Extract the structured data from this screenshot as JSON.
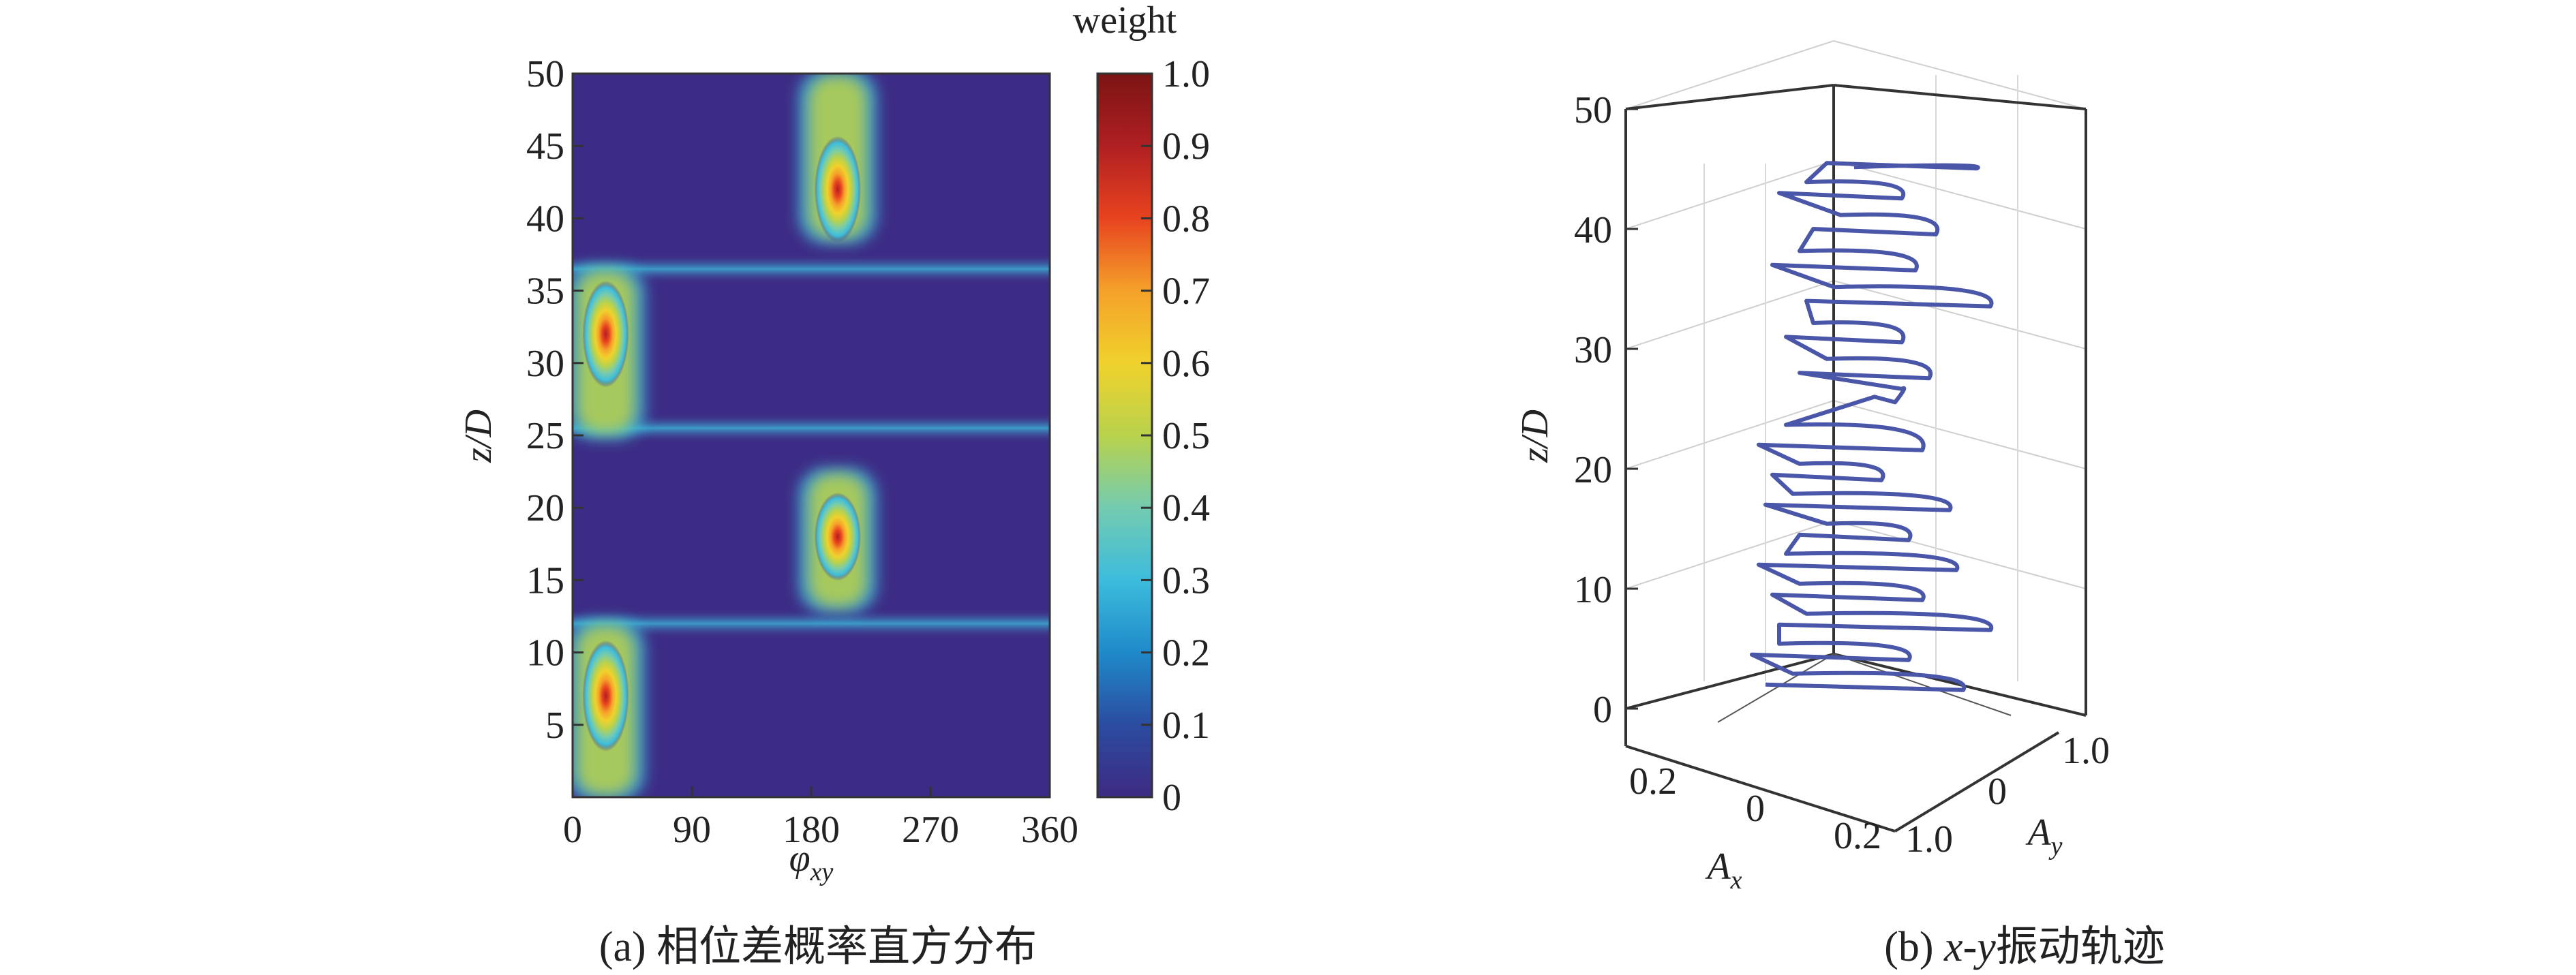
{
  "figure": {
    "caption_a": "(a) 相位差概率直方分布",
    "caption_b_prefix": "(b) ",
    "caption_b_xy": "x-y",
    "caption_b_suffix": "振动轨迹"
  },
  "chart_data": [
    {
      "type": "heatmap",
      "title": "",
      "xlabel_main": "φ",
      "xlabel_sub": "xy",
      "ylabel": "z/D",
      "xlim": [
        0,
        360
      ],
      "ylim": [
        0,
        50
      ],
      "x_ticks": [
        "0",
        "90",
        "180",
        "270",
        "360"
      ],
      "x_tick_values": [
        0,
        90,
        180,
        270,
        360
      ],
      "y_ticks": [
        "5",
        "10",
        "15",
        "20",
        "25",
        "30",
        "35",
        "40",
        "45",
        "50"
      ],
      "y_tick_values": [
        5,
        10,
        15,
        20,
        25,
        30,
        35,
        40,
        45,
        50
      ],
      "colorbar": {
        "label": "weight",
        "range": [
          0,
          1
        ],
        "ticks": [
          "0",
          "0.1",
          "0.2",
          "0.3",
          "0.4",
          "0.5",
          "0.6",
          "0.7",
          "0.8",
          "0.9",
          "1.0"
        ],
        "tick_values": [
          0,
          0.1,
          0.2,
          0.3,
          0.4,
          0.5,
          0.6,
          0.7,
          0.8,
          0.9,
          1.0
        ],
        "colormap": [
          "#3e2a82",
          "#2b4ca0",
          "#1f8ac9",
          "#3cbcdc",
          "#74cbb0",
          "#b9d24c",
          "#f0d22c",
          "#f5a12a",
          "#e8431f",
          "#b01f22",
          "#7b1414"
        ]
      },
      "background_color": "#3d2c85",
      "peaks": [
        {
          "phase": 200,
          "z_center": 42,
          "z_range": [
            38.5,
            50
          ],
          "peak_weight": 0.95
        },
        {
          "phase": 25,
          "z_center": 32,
          "z_range": [
            25,
            36.5
          ],
          "peak_weight": 0.9
        },
        {
          "phase": 200,
          "z_center": 18,
          "z_range": [
            13,
            22.5
          ],
          "peak_weight": 0.92
        },
        {
          "phase": 25,
          "z_center": 7,
          "z_range": [
            0,
            12
          ],
          "peak_weight": 0.88
        }
      ],
      "bridges_z": [
        12,
        25.5,
        36.5
      ]
    },
    {
      "type": "line",
      "subtype": "3d-trajectory",
      "zlabel": "z/D",
      "xlabel_main": "A",
      "xlabel_sub": "x",
      "ylabel_main": "A",
      "ylabel_sub": "y",
      "z_ticks": [
        "0",
        "10",
        "20",
        "30",
        "40",
        "50"
      ],
      "z_tick_values": [
        0,
        10,
        20,
        30,
        40,
        50
      ],
      "x_ticks": [
        "0.2",
        "0",
        "0.2"
      ],
      "x_tick_values": [
        -0.2,
        0,
        0.2
      ],
      "y_ticks": [
        "1.0",
        "0",
        "1.0"
      ],
      "y_tick_values": [
        -1.0,
        0,
        1.0
      ],
      "zlim": [
        0,
        50
      ],
      "line_color": "#4a56a8",
      "grid": true
    }
  ]
}
